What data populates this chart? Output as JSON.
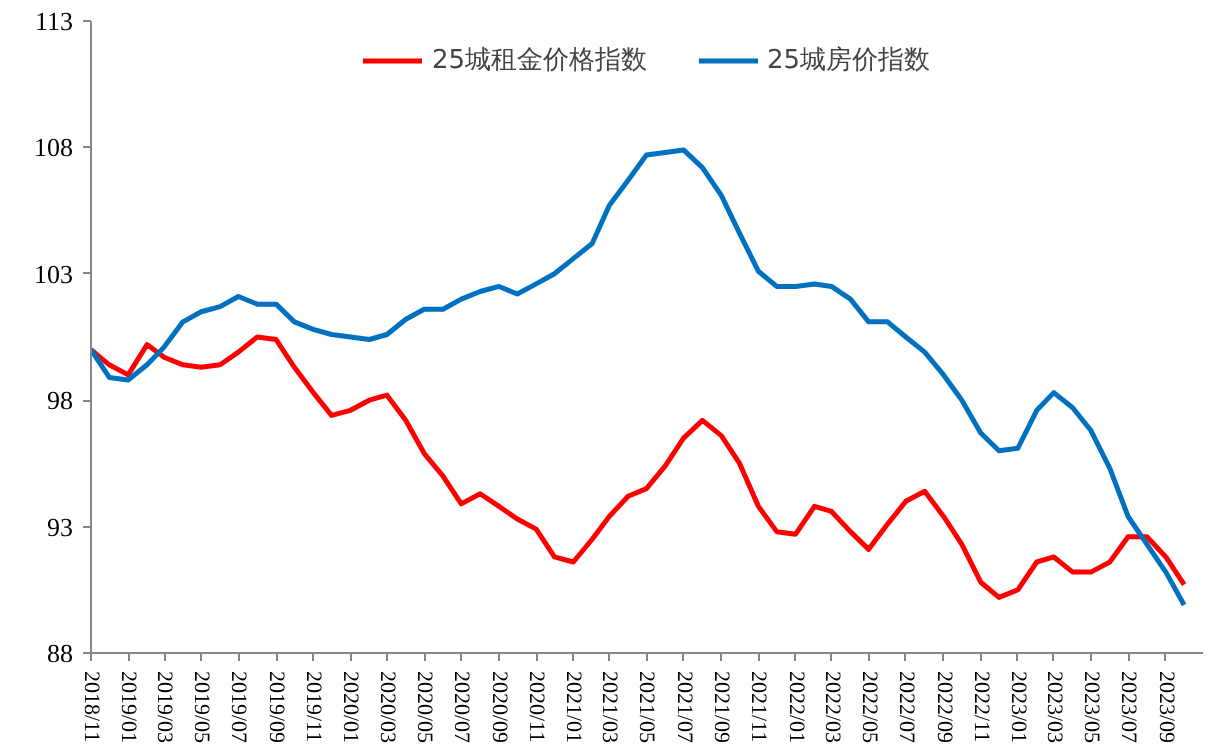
{
  "chart_data": {
    "type": "line",
    "x": [
      "2018-11",
      "2018-12",
      "2019-01",
      "2019-02",
      "2019-03",
      "2019-04",
      "2019-05",
      "2019-06",
      "2019-07",
      "2019-08",
      "2019-09",
      "2019-10",
      "2019-11",
      "2019-12",
      "2020-01",
      "2020-02",
      "2020-03",
      "2020-04",
      "2020-05",
      "2020-06",
      "2020-07",
      "2020-08",
      "2020-09",
      "2020-10",
      "2020-11",
      "2020-12",
      "2021-01",
      "2021-02",
      "2021-03",
      "2021-04",
      "2021-05",
      "2021-06",
      "2021-07",
      "2021-08",
      "2021-09",
      "2021-10",
      "2021-11",
      "2021-12",
      "2022-01",
      "2022-02",
      "2022-03",
      "2022-04",
      "2022-05",
      "2022-06",
      "2022-07",
      "2022-08",
      "2022-09",
      "2022-10",
      "2022-11",
      "2022-12",
      "2023-01",
      "2023-02",
      "2023-03",
      "2023-04",
      "2023-05",
      "2023-06",
      "2023-07",
      "2023-08",
      "2023-09",
      "2023-10"
    ],
    "series": [
      {
        "name": "25城租金价格指数",
        "color": "#ff0000",
        "values": [
          100.0,
          99.4,
          99.0,
          100.2,
          99.7,
          99.4,
          99.3,
          99.4,
          99.9,
          100.5,
          100.4,
          99.3,
          98.3,
          97.4,
          97.6,
          98.0,
          98.2,
          97.2,
          95.9,
          95.0,
          93.9,
          94.3,
          93.8,
          93.3,
          92.9,
          91.8,
          91.6,
          92.5,
          93.4,
          94.2,
          94.5,
          95.4,
          96.5,
          97.2,
          96.6,
          95.5,
          93.8,
          92.8,
          92.7,
          93.8,
          93.6,
          92.8,
          92.1,
          93.1,
          94.0,
          94.4,
          93.4,
          92.3,
          90.8,
          90.2,
          90.5,
          91.6,
          91.8,
          91.2,
          91.2,
          91.6,
          92.6,
          92.6,
          91.8,
          90.7
        ]
      },
      {
        "name": "25城房价指数",
        "color": "#0070c0",
        "values": [
          100.0,
          98.9,
          98.8,
          99.4,
          100.1,
          101.1,
          101.5,
          101.7,
          102.1,
          101.8,
          101.8,
          101.1,
          100.8,
          100.6,
          100.5,
          100.4,
          100.6,
          101.2,
          101.6,
          101.6,
          102.0,
          102.3,
          102.5,
          102.2,
          102.6,
          103.0,
          103.6,
          104.2,
          105.7,
          106.7,
          107.7,
          107.8,
          107.9,
          107.2,
          106.1,
          104.6,
          103.1,
          102.5,
          102.5,
          102.6,
          102.5,
          102.0,
          101.1,
          101.1,
          100.5,
          99.9,
          99.0,
          98.0,
          96.7,
          96.0,
          96.1,
          97.6,
          98.3,
          97.7,
          96.8,
          95.3,
          93.4,
          92.3,
          91.2,
          89.9
        ]
      }
    ],
    "xlim": [
      "2018-11",
      "2023-11"
    ],
    "xticks": [
      {
        "value": "2018-11",
        "label": "2018/11"
      },
      {
        "value": "2019-01",
        "label": "2019/01"
      },
      {
        "value": "2019-03",
        "label": "2019/03"
      },
      {
        "value": "2019-05",
        "label": "2019/05"
      },
      {
        "value": "2019-07",
        "label": "2019/07"
      },
      {
        "value": "2019-09",
        "label": "2019/09"
      },
      {
        "value": "2019-11",
        "label": "2019/11"
      },
      {
        "value": "2020-01",
        "label": "2020/01"
      },
      {
        "value": "2020-03",
        "label": "2020/03"
      },
      {
        "value": "2020-05",
        "label": "2020/05"
      },
      {
        "value": "2020-07",
        "label": "2020/07"
      },
      {
        "value": "2020-09",
        "label": "2020/09"
      },
      {
        "value": "2020-11",
        "label": "2020/11"
      },
      {
        "value": "2021-01",
        "label": "2021/01"
      },
      {
        "value": "2021-03",
        "label": "2021/03"
      },
      {
        "value": "2021-05",
        "label": "2021/05"
      },
      {
        "value": "2021-07",
        "label": "2021/07"
      },
      {
        "value": "2021-09",
        "label": "2021/09"
      },
      {
        "value": "2021-11",
        "label": "2021/11"
      },
      {
        "value": "2022-01",
        "label": "2022/01"
      },
      {
        "value": "2022-03",
        "label": "2022/03"
      },
      {
        "value": "2022-05",
        "label": "2022/05"
      },
      {
        "value": "2022-07",
        "label": "2022/07"
      },
      {
        "value": "2022-09",
        "label": "2022/09"
      },
      {
        "value": "2022-11",
        "label": "2022/11"
      },
      {
        "value": "2023-01",
        "label": "2023/01"
      },
      {
        "value": "2023-03",
        "label": "2023/03"
      },
      {
        "value": "2023-05",
        "label": "2023/05"
      },
      {
        "value": "2023-07",
        "label": "2023/07"
      },
      {
        "value": "2023-09",
        "label": "2023/09"
      }
    ],
    "ylim": [
      88,
      113
    ],
    "yticks": [
      88,
      93,
      98,
      103,
      108,
      113
    ],
    "grid": false,
    "legend": "top",
    "marker": "none",
    "line_style": "solid"
  }
}
